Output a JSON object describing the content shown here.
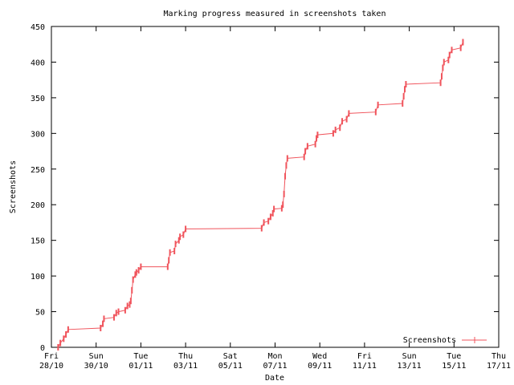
{
  "chart_data": {
    "type": "line",
    "title": "Marking progress measured in screenshots taken",
    "xlabel": "Date",
    "ylabel": "Screenshots",
    "xlim": [
      0,
      20
    ],
    "ylim": [
      0,
      450
    ],
    "x_ticks": [
      {
        "value": 0,
        "day": "Fri",
        "date": "28/10"
      },
      {
        "value": 2,
        "day": "Sun",
        "date": "30/10"
      },
      {
        "value": 4,
        "day": "Tue",
        "date": "01/11"
      },
      {
        "value": 6,
        "day": "Thu",
        "date": "03/11"
      },
      {
        "value": 8,
        "day": "Sat",
        "date": "05/11"
      },
      {
        "value": 10,
        "day": "Mon",
        "date": "07/11"
      },
      {
        "value": 12,
        "day": "Wed",
        "date": "09/11"
      },
      {
        "value": 14,
        "day": "Fri",
        "date": "11/11"
      },
      {
        "value": 16,
        "day": "Sun",
        "date": "13/11"
      },
      {
        "value": 18,
        "day": "Tue",
        "date": "15/11"
      },
      {
        "value": 20,
        "day": "Thu",
        "date": "17/11"
      }
    ],
    "y_ticks": [
      0,
      50,
      100,
      150,
      200,
      250,
      300,
      350,
      400,
      450
    ],
    "grid": false,
    "legend": "bottom-right",
    "series": [
      {
        "name": "Screenshots",
        "color": "#f0545c",
        "points": [
          [
            0.3,
            0
          ],
          [
            0.4,
            6
          ],
          [
            0.55,
            12
          ],
          [
            0.65,
            18
          ],
          [
            0.75,
            25
          ],
          [
            2.2,
            27
          ],
          [
            2.3,
            33
          ],
          [
            2.35,
            40
          ],
          [
            2.8,
            42
          ],
          [
            2.9,
            48
          ],
          [
            3.0,
            50
          ],
          [
            3.3,
            52
          ],
          [
            3.4,
            58
          ],
          [
            3.5,
            60
          ],
          [
            3.55,
            65
          ],
          [
            3.6,
            80
          ],
          [
            3.65,
            95
          ],
          [
            3.75,
            102
          ],
          [
            3.8,
            105
          ],
          [
            3.9,
            108
          ],
          [
            4.0,
            113
          ],
          [
            5.2,
            113
          ],
          [
            5.25,
            122
          ],
          [
            5.3,
            133
          ],
          [
            5.5,
            135
          ],
          [
            5.55,
            145
          ],
          [
            5.7,
            150
          ],
          [
            5.75,
            155
          ],
          [
            5.9,
            158
          ],
          [
            6.0,
            166
          ],
          [
            9.4,
            167
          ],
          [
            9.5,
            175
          ],
          [
            9.7,
            177
          ],
          [
            9.8,
            183
          ],
          [
            9.9,
            188
          ],
          [
            9.95,
            194
          ],
          [
            10.3,
            195
          ],
          [
            10.35,
            200
          ],
          [
            10.4,
            215
          ],
          [
            10.45,
            240
          ],
          [
            10.5,
            255
          ],
          [
            10.55,
            265
          ],
          [
            11.3,
            267
          ],
          [
            11.35,
            275
          ],
          [
            11.45,
            282
          ],
          [
            11.8,
            285
          ],
          [
            11.85,
            293
          ],
          [
            11.9,
            298
          ],
          [
            12.6,
            300
          ],
          [
            12.7,
            305
          ],
          [
            12.9,
            308
          ],
          [
            13.0,
            317
          ],
          [
            13.2,
            320
          ],
          [
            13.3,
            328
          ],
          [
            14.5,
            330
          ],
          [
            14.6,
            340
          ],
          [
            15.7,
            342
          ],
          [
            15.75,
            352
          ],
          [
            15.8,
            362
          ],
          [
            15.85,
            369
          ],
          [
            17.4,
            371
          ],
          [
            17.45,
            380
          ],
          [
            17.5,
            392
          ],
          [
            17.55,
            400
          ],
          [
            17.75,
            403
          ],
          [
            17.8,
            410
          ],
          [
            17.9,
            417
          ],
          [
            18.3,
            420
          ],
          [
            18.4,
            428
          ]
        ]
      }
    ]
  }
}
